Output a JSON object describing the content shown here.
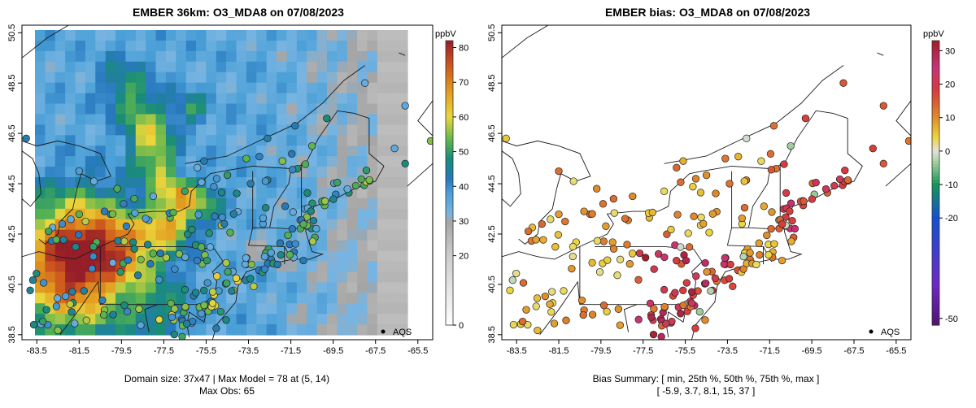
{
  "chart_data": [
    {
      "type": "heatmap",
      "title": "EMBER 36km: O3_MDA8 on 07/08/2023",
      "x_ticks": [
        "-83.5",
        "-81.5",
        "-79.5",
        "-77.5",
        "-75.5",
        "-73.5",
        "-71.5",
        "-69.5",
        "-67.5",
        "-65.5"
      ],
      "y_ticks": [
        "38.5",
        "40.5",
        "42.5",
        "44.5",
        "46.5",
        "48.5",
        "50.5"
      ],
      "xlim": [
        -84.2,
        -64.8
      ],
      "ylim": [
        38.3,
        50.8
      ],
      "colorbar": {
        "unit": "ppbV",
        "ticks": [
          "0",
          "20",
          "30",
          "40",
          "50",
          "60",
          "70",
          "80"
        ],
        "tick_values": [
          0,
          20,
          30,
          40,
          50,
          60,
          70,
          80
        ],
        "range": [
          0,
          82
        ]
      },
      "legend": "AQS",
      "legend_position": "bottom-right",
      "caption_lines": [
        "Domain size: 37x47 | Max Model = 78 at (5, 14)",
        "Max Obs: 65"
      ]
    },
    {
      "type": "scatter",
      "title": "EMBER bias: O3_MDA8 on 07/08/2023",
      "x_ticks": [
        "-83.5",
        "-81.5",
        "-79.5",
        "-77.5",
        "-75.5",
        "-73.5",
        "-71.5",
        "-69.5",
        "-67.5",
        "-65.5"
      ],
      "y_ticks": [
        "38.5",
        "40.5",
        "42.5",
        "44.5",
        "46.5",
        "48.5",
        "50.5"
      ],
      "xlim": [
        -84.2,
        -64.8
      ],
      "ylim": [
        38.3,
        50.8
      ],
      "colorbar": {
        "unit": "ppbV",
        "ticks": [
          "-50",
          "-20",
          "-10",
          "0",
          "10",
          "20",
          "30"
        ],
        "tick_values": [
          -50,
          -20,
          -10,
          0,
          10,
          20,
          30
        ],
        "range": [
          -52,
          33
        ]
      },
      "legend": "AQS",
      "legend_position": "bottom-right",
      "caption_lines": [
        "Bias Summary: [ min, 25th %, 50th %, 75th %, max ]",
        "[ -5.9,   3.7,   8.1,   15,   37 ]"
      ],
      "bias_summary": {
        "min": -5.9,
        "p25": 3.7,
        "p50": 8.1,
        "p75": 15,
        "max": 37
      }
    }
  ]
}
